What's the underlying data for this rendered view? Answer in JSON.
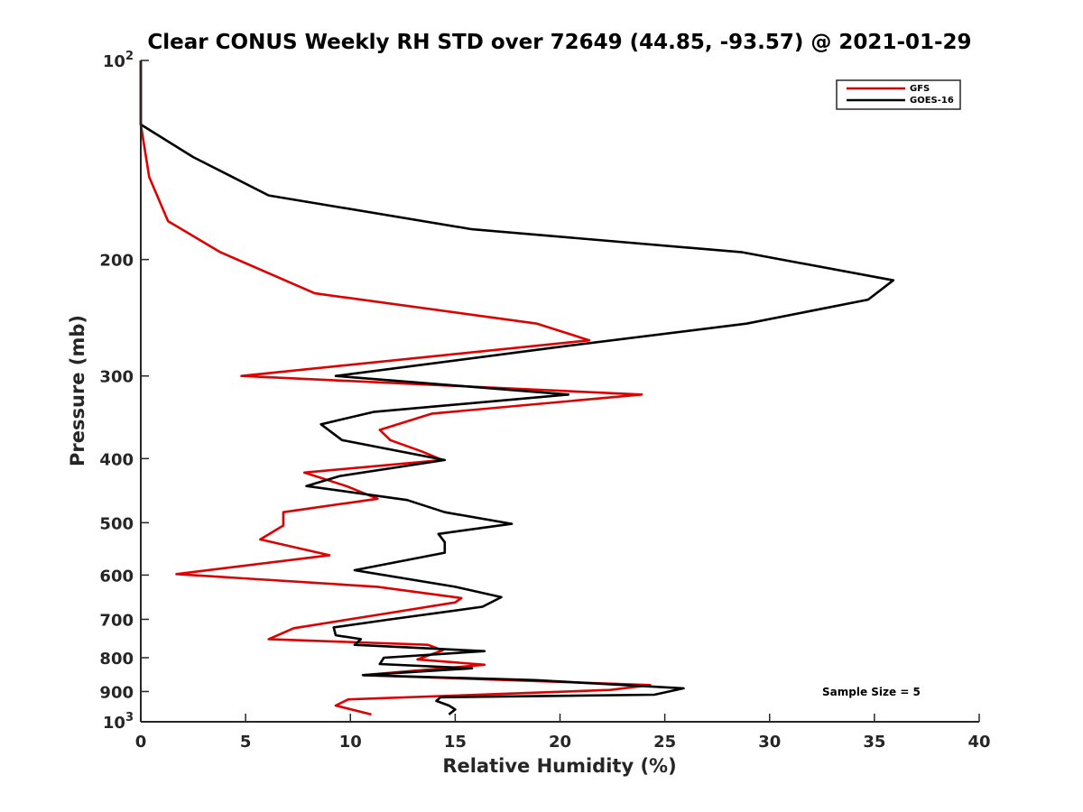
{
  "chart_data": {
    "type": "line",
    "title": "Clear CONUS Weekly RH STD over 72649 (44.85, -93.57) @ 2021-01-29",
    "xlabel": "Relative Humidity (%)",
    "ylabel": "Pressure (mb)",
    "xlim": [
      0,
      40
    ],
    "ylim": [
      100,
      1000
    ],
    "yscale": "log",
    "y_inverted": true,
    "grid": false,
    "legend_position": "top-right",
    "x_ticks": [
      "0",
      "5",
      "10",
      "15",
      "20",
      "25",
      "30",
      "35",
      "40"
    ],
    "y_ticks": [
      {
        "value": 100,
        "base": "10",
        "exp": "2"
      },
      {
        "value": 200,
        "label": "200"
      },
      {
        "value": 300,
        "label": "300"
      },
      {
        "value": 400,
        "label": "400"
      },
      {
        "value": 500,
        "label": "500"
      },
      {
        "value": 600,
        "label": "600"
      },
      {
        "value": 700,
        "label": "700"
      },
      {
        "value": 800,
        "label": "800"
      },
      {
        "value": 900,
        "label": "900"
      },
      {
        "value": 1000,
        "base": "10",
        "exp": "3"
      }
    ],
    "annotation": "Sample Size = 5",
    "series": [
      {
        "name": "GFS",
        "color": "#e00000",
        "points": [
          [
            0,
            100
          ],
          [
            0,
            125
          ],
          [
            0.4,
            150
          ],
          [
            1.3,
            175
          ],
          [
            3.8,
            195
          ],
          [
            8.3,
            225
          ],
          [
            18.9,
            250
          ],
          [
            21.4,
            265
          ],
          [
            4.8,
            300
          ],
          [
            23.9,
            320
          ],
          [
            13.9,
            342
          ],
          [
            11.4,
            362
          ],
          [
            11.9,
            375
          ],
          [
            13.4,
            390
          ],
          [
            14.4,
            402
          ],
          [
            7.8,
            420
          ],
          [
            9.8,
            440
          ],
          [
            11.3,
            460
          ],
          [
            6.8,
            482
          ],
          [
            6.8,
            505
          ],
          [
            5.7,
            530
          ],
          [
            9.0,
            560
          ],
          [
            1.7,
            598
          ],
          [
            11.3,
            625
          ],
          [
            15.3,
            650
          ],
          [
            15.0,
            660
          ],
          [
            11.8,
            685
          ],
          [
            7.3,
            722
          ],
          [
            6.1,
            750
          ],
          [
            13.7,
            765
          ],
          [
            14.4,
            780
          ],
          [
            13.2,
            805
          ],
          [
            16.4,
            820
          ],
          [
            10.6,
            850
          ],
          [
            24.3,
            880
          ],
          [
            22.4,
            895
          ],
          [
            9.9,
            925
          ],
          [
            9.3,
            945
          ],
          [
            11.0,
            975
          ]
        ]
      },
      {
        "name": "GOES-16",
        "color": "#000000",
        "points": [
          [
            0,
            100
          ],
          [
            0,
            125
          ],
          [
            2.5,
            140
          ],
          [
            6.1,
            160
          ],
          [
            15.8,
            180
          ],
          [
            28.7,
            195
          ],
          [
            35.9,
            215
          ],
          [
            34.7,
            230
          ],
          [
            28.9,
            250
          ],
          [
            20.4,
            270
          ],
          [
            9.3,
            300
          ],
          [
            20.4,
            320
          ],
          [
            11.1,
            340
          ],
          [
            8.6,
            355
          ],
          [
            9.6,
            375
          ],
          [
            14.5,
            402
          ],
          [
            9.5,
            425
          ],
          [
            7.9,
            440
          ],
          [
            12.7,
            462
          ],
          [
            14.5,
            482
          ],
          [
            17.7,
            502
          ],
          [
            14.2,
            520
          ],
          [
            14.5,
            535
          ],
          [
            14.5,
            555
          ],
          [
            10.2,
            590
          ],
          [
            15.0,
            625
          ],
          [
            17.2,
            648
          ],
          [
            16.3,
            670
          ],
          [
            11.9,
            700
          ],
          [
            9.2,
            720
          ],
          [
            9.3,
            740
          ],
          [
            10.5,
            750
          ],
          [
            10.2,
            765
          ],
          [
            16.4,
            782
          ],
          [
            11.6,
            800
          ],
          [
            11.4,
            818
          ],
          [
            15.8,
            830
          ],
          [
            10.6,
            850
          ],
          [
            18.8,
            865
          ],
          [
            25.9,
            890
          ],
          [
            24.5,
            910
          ],
          [
            14.3,
            918
          ],
          [
            14.1,
            930
          ],
          [
            14.7,
            945
          ],
          [
            15.0,
            958
          ],
          [
            14.7,
            975
          ]
        ]
      }
    ]
  }
}
